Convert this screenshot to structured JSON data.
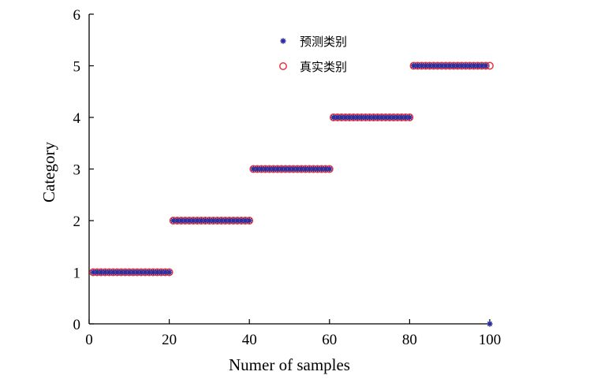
{
  "chart_data": {
    "type": "scatter",
    "title": "",
    "xlabel": "Numer of samples",
    "ylabel": "Category",
    "xlim": [
      0,
      100
    ],
    "ylim": [
      0,
      6
    ],
    "xticks": [
      "0",
      "20",
      "40",
      "60",
      "80",
      "100"
    ],
    "yticks": [
      "0",
      "1",
      "2",
      "3",
      "4",
      "5",
      "6"
    ],
    "grid": false,
    "legend_position": "top-center",
    "series": [
      {
        "name": "预测类别",
        "marker": "asterisk",
        "color": "#2b2f9e",
        "x": [
          1,
          2,
          3,
          4,
          5,
          6,
          7,
          8,
          9,
          10,
          11,
          12,
          13,
          14,
          15,
          16,
          17,
          18,
          19,
          20,
          21,
          22,
          23,
          24,
          25,
          26,
          27,
          28,
          29,
          30,
          31,
          32,
          33,
          34,
          35,
          36,
          37,
          38,
          39,
          40,
          41,
          42,
          43,
          44,
          45,
          46,
          47,
          48,
          49,
          50,
          51,
          52,
          53,
          54,
          55,
          56,
          57,
          58,
          59,
          60,
          61,
          62,
          63,
          64,
          65,
          66,
          67,
          68,
          69,
          70,
          71,
          72,
          73,
          74,
          75,
          76,
          77,
          78,
          79,
          80,
          81,
          82,
          83,
          84,
          85,
          86,
          87,
          88,
          89,
          90,
          91,
          92,
          93,
          94,
          95,
          96,
          97,
          98,
          99,
          100
        ],
        "y": [
          1,
          1,
          1,
          1,
          1,
          1,
          1,
          1,
          1,
          1,
          1,
          1,
          1,
          1,
          1,
          1,
          1,
          1,
          1,
          1,
          2,
          2,
          2,
          2,
          2,
          2,
          2,
          2,
          2,
          2,
          2,
          2,
          2,
          2,
          2,
          2,
          2,
          2,
          2,
          2,
          3,
          3,
          3,
          3,
          3,
          3,
          3,
          3,
          3,
          3,
          3,
          3,
          3,
          3,
          3,
          3,
          3,
          3,
          3,
          3,
          4,
          4,
          4,
          4,
          4,
          4,
          4,
          4,
          4,
          4,
          4,
          4,
          4,
          4,
          4,
          4,
          4,
          4,
          4,
          4,
          5,
          5,
          5,
          5,
          5,
          5,
          5,
          5,
          5,
          5,
          5,
          5,
          5,
          5,
          5,
          5,
          5,
          5,
          5,
          0
        ]
      },
      {
        "name": "真实类别",
        "marker": "circle",
        "color": "#e8323c",
        "x": [
          1,
          2,
          3,
          4,
          5,
          6,
          7,
          8,
          9,
          10,
          11,
          12,
          13,
          14,
          15,
          16,
          17,
          18,
          19,
          20,
          21,
          22,
          23,
          24,
          25,
          26,
          27,
          28,
          29,
          30,
          31,
          32,
          33,
          34,
          35,
          36,
          37,
          38,
          39,
          40,
          41,
          42,
          43,
          44,
          45,
          46,
          47,
          48,
          49,
          50,
          51,
          52,
          53,
          54,
          55,
          56,
          57,
          58,
          59,
          60,
          61,
          62,
          63,
          64,
          65,
          66,
          67,
          68,
          69,
          70,
          71,
          72,
          73,
          74,
          75,
          76,
          77,
          78,
          79,
          80,
          81,
          82,
          83,
          84,
          85,
          86,
          87,
          88,
          89,
          90,
          91,
          92,
          93,
          94,
          95,
          96,
          97,
          98,
          99,
          100
        ],
        "y": [
          1,
          1,
          1,
          1,
          1,
          1,
          1,
          1,
          1,
          1,
          1,
          1,
          1,
          1,
          1,
          1,
          1,
          1,
          1,
          1,
          2,
          2,
          2,
          2,
          2,
          2,
          2,
          2,
          2,
          2,
          2,
          2,
          2,
          2,
          2,
          2,
          2,
          2,
          2,
          2,
          3,
          3,
          3,
          3,
          3,
          3,
          3,
          3,
          3,
          3,
          3,
          3,
          3,
          3,
          3,
          3,
          3,
          3,
          3,
          3,
          4,
          4,
          4,
          4,
          4,
          4,
          4,
          4,
          4,
          4,
          4,
          4,
          4,
          4,
          4,
          4,
          4,
          4,
          4,
          4,
          5,
          5,
          5,
          5,
          5,
          5,
          5,
          5,
          5,
          5,
          5,
          5,
          5,
          5,
          5,
          5,
          5,
          5,
          5,
          5
        ]
      }
    ]
  }
}
